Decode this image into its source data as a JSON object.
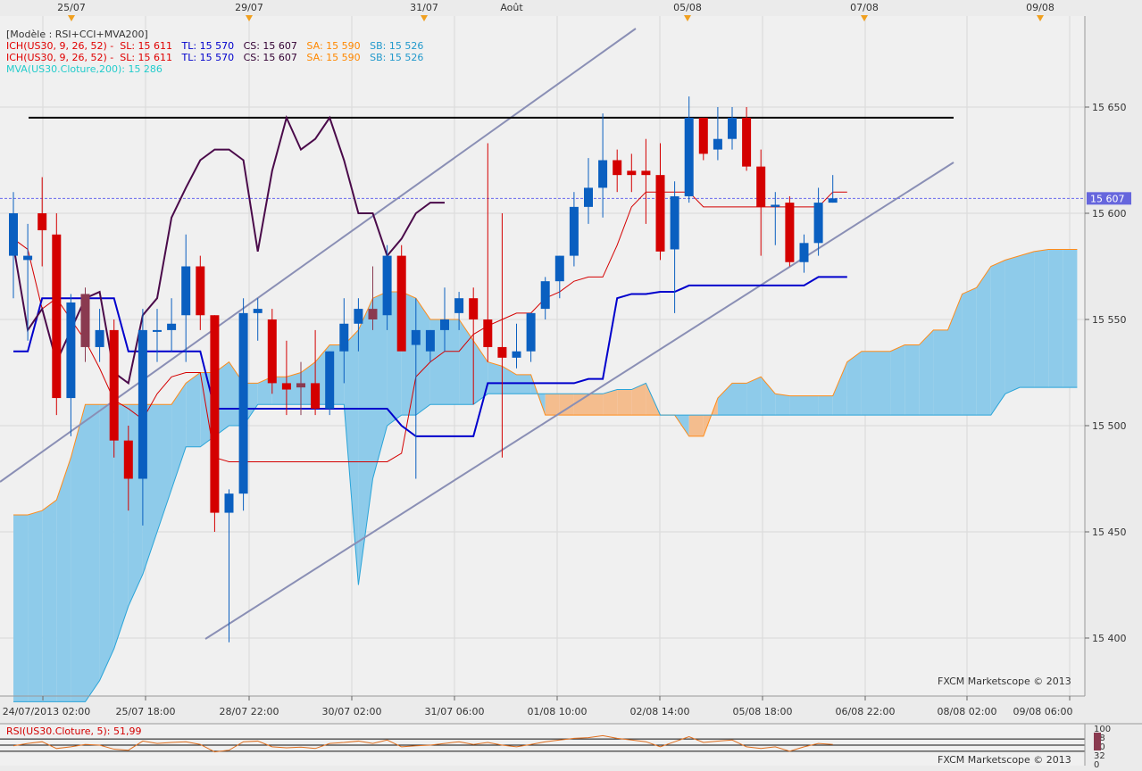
{
  "chart_data": {
    "type": "candlestick",
    "instrument": "US30",
    "ylim": [
      15370,
      15680
    ],
    "y_ticks": [
      15400,
      15450,
      15500,
      15550,
      15600,
      15650
    ],
    "y_tick_labels": [
      "15 400",
      "15 450",
      "15 500",
      "15 550",
      "15 600",
      "15 650"
    ],
    "current_price": 15607,
    "current_price_label": "15 607",
    "top_date_labels": [
      "25/07",
      "29/07",
      "31/07",
      "Août",
      "05/08",
      "07/08",
      "09/08"
    ],
    "bottom_date_labels": [
      "24/07/2013 02:00",
      "25/07 18:00",
      "28/07 22:00",
      "30/07 02:00",
      "31/07 06:00",
      "01/08 10:00",
      "02/08 14:00",
      "05/08 18:00",
      "06/08 22:00",
      "08/08 02:00",
      "09/08 06:00"
    ],
    "legend": {
      "line1": "[Modèle : RSI+CCI+MVA200]",
      "line2": [
        {
          "text": "ICH(US30, 9, 26, 52) -  SL: 15 611",
          "color": "#e00000"
        },
        {
          "text": "TL: 15 570",
          "color": "#0000cc"
        },
        {
          "text": "CS: 15 607",
          "color": "#330033"
        },
        {
          "text": "SA: 15 590",
          "color": "#ff8800"
        },
        {
          "text": "SB: 15 526",
          "color": "#2299cc"
        }
      ],
      "line3": [
        {
          "text": "ICH(US30, 9, 26, 52) -  SL: 15 611",
          "color": "#e00000"
        },
        {
          "text": "TL: 15 570",
          "color": "#0000cc"
        },
        {
          "text": "CS: 15 607",
          "color": "#330033"
        },
        {
          "text": "SA: 15 590",
          "color": "#ff8800"
        },
        {
          "text": "SB: 15 526",
          "color": "#2299cc"
        }
      ],
      "line4": "MVA(US30.Cloture,200): 15 286"
    },
    "candles": [
      {
        "o": 15580,
        "h": 15610,
        "l": 15560,
        "c": 15600
      },
      {
        "o": 15578,
        "h": 15595,
        "l": 15540,
        "c": 15580
      },
      {
        "o": 15600,
        "h": 15617,
        "l": 15575,
        "c": 15592
      },
      {
        "o": 15590,
        "h": 15600,
        "l": 15505,
        "c": 15513
      },
      {
        "o": 15513,
        "h": 15562,
        "l": 15495,
        "c": 15558
      },
      {
        "o": 15562,
        "h": 15565,
        "l": 15530,
        "c": 15537
      },
      {
        "o": 15537,
        "h": 15555,
        "l": 15530,
        "c": 15545
      },
      {
        "o": 15545,
        "h": 15550,
        "l": 15485,
        "c": 15493
      },
      {
        "o": 15493,
        "h": 15500,
        "l": 15460,
        "c": 15475
      },
      {
        "o": 15475,
        "h": 15555,
        "l": 15453,
        "c": 15545
      },
      {
        "o": 15545,
        "h": 15555,
        "l": 15530,
        "c": 15545
      },
      {
        "o": 15545,
        "h": 15560,
        "l": 15535,
        "c": 15548
      },
      {
        "o": 15552,
        "h": 15590,
        "l": 15530,
        "c": 15575
      },
      {
        "o": 15575,
        "h": 15580,
        "l": 15545,
        "c": 15552
      },
      {
        "o": 15552,
        "h": 15552,
        "l": 15450,
        "c": 15459
      },
      {
        "o": 15459,
        "h": 15470,
        "l": 15398,
        "c": 15468
      },
      {
        "o": 15468,
        "h": 15560,
        "l": 15460,
        "c": 15553
      },
      {
        "o": 15553,
        "h": 15560,
        "l": 15540,
        "c": 15555
      },
      {
        "o": 15550,
        "h": 15555,
        "l": 15515,
        "c": 15520
      },
      {
        "o": 15520,
        "h": 15540,
        "l": 15505,
        "c": 15517
      },
      {
        "o": 15520,
        "h": 15530,
        "l": 15505,
        "c": 15518
      },
      {
        "o": 15520,
        "h": 15545,
        "l": 15505,
        "c": 15508
      },
      {
        "o": 15508,
        "h": 15535,
        "l": 15505,
        "c": 15535
      },
      {
        "o": 15535,
        "h": 15560,
        "l": 15520,
        "c": 15548
      },
      {
        "o": 15548,
        "h": 15560,
        "l": 15535,
        "c": 15555
      },
      {
        "o": 15555,
        "h": 15575,
        "l": 15545,
        "c": 15550
      },
      {
        "o": 15552,
        "h": 15585,
        "l": 15545,
        "c": 15580
      },
      {
        "o": 15580,
        "h": 15585,
        "l": 15538,
        "c": 15535
      },
      {
        "o": 15538,
        "h": 15560,
        "l": 15475,
        "c": 15545
      },
      {
        "o": 15535,
        "h": 15545,
        "l": 15530,
        "c": 15545
      },
      {
        "o": 15545,
        "h": 15565,
        "l": 15535,
        "c": 15550
      },
      {
        "o": 15553,
        "h": 15563,
        "l": 15545,
        "c": 15560
      },
      {
        "o": 15560,
        "h": 15565,
        "l": 15510,
        "c": 15550
      },
      {
        "o": 15550,
        "h": 15633,
        "l": 15530,
        "c": 15537
      },
      {
        "o": 15537,
        "h": 15600,
        "l": 15485,
        "c": 15532
      },
      {
        "o": 15532,
        "h": 15548,
        "l": 15527,
        "c": 15535
      },
      {
        "o": 15535,
        "h": 15553,
        "l": 15530,
        "c": 15553
      },
      {
        "o": 15555,
        "h": 15570,
        "l": 15550,
        "c": 15568
      },
      {
        "o": 15568,
        "h": 15580,
        "l": 15560,
        "c": 15580
      },
      {
        "o": 15580,
        "h": 15610,
        "l": 15575,
        "c": 15603
      },
      {
        "o": 15603,
        "h": 15626,
        "l": 15595,
        "c": 15612
      },
      {
        "o": 15612,
        "h": 15647,
        "l": 15598,
        "c": 15625
      },
      {
        "o": 15625,
        "h": 15630,
        "l": 15610,
        "c": 15618
      },
      {
        "o": 15620,
        "h": 15628,
        "l": 15610,
        "c": 15618
      },
      {
        "o": 15620,
        "h": 15635,
        "l": 15595,
        "c": 15618
      },
      {
        "o": 15618,
        "h": 15633,
        "l": 15578,
        "c": 15582
      },
      {
        "o": 15583,
        "h": 15615,
        "l": 15553,
        "c": 15608
      },
      {
        "o": 15608,
        "h": 15655,
        "l": 15605,
        "c": 15645
      },
      {
        "o": 15645,
        "h": 15645,
        "l": 15625,
        "c": 15628
      },
      {
        "o": 15630,
        "h": 15650,
        "l": 15625,
        "c": 15635
      },
      {
        "o": 15635,
        "h": 15650,
        "l": 15630,
        "c": 15645
      },
      {
        "o": 15645,
        "h": 15650,
        "l": 15620,
        "c": 15622
      },
      {
        "o": 15622,
        "h": 15630,
        "l": 15580,
        "c": 15603
      },
      {
        "o": 15603,
        "h": 15610,
        "l": 15585,
        "c": 15604
      },
      {
        "o": 15605,
        "h": 15608,
        "l": 15575,
        "c": 15577
      },
      {
        "o": 15577,
        "h": 15590,
        "l": 15572,
        "c": 15586
      },
      {
        "o": 15586,
        "h": 15612,
        "l": 15580,
        "c": 15605
      },
      {
        "o": 15605,
        "h": 15618,
        "l": 15605,
        "c": 15607
      }
    ],
    "tenkan": [
      15535,
      15535,
      15560,
      15560,
      15560,
      15560,
      15560,
      15560,
      15535,
      15535,
      15535,
      15535,
      15535,
      15535,
      15508,
      15508,
      15508,
      15508,
      15508,
      15508,
      15508,
      15508,
      15508,
      15508,
      15508,
      15508,
      15508,
      15500,
      15495,
      15495,
      15495,
      15495,
      15495,
      15520,
      15520,
      15520,
      15520,
      15520,
      15520,
      15520,
      15522,
      15522,
      15560,
      15562,
      15562,
      15563,
      15563,
      15566,
      15566,
      15566,
      15566,
      15566,
      15566,
      15566,
      15566,
      15566,
      15570,
      15570,
      15570
    ],
    "kijun": [
      15588,
      15583,
      15555,
      15560,
      15550,
      15540,
      15527,
      15512,
      15508,
      15503,
      15515,
      15523,
      15525,
      15525,
      15485,
      15483,
      15483,
      15483,
      15483,
      15483,
      15483,
      15483,
      15483,
      15483,
      15483,
      15483,
      15483,
      15487,
      15523,
      15530,
      15535,
      15535,
      15543,
      15547,
      15550,
      15553,
      15553,
      15560,
      15563,
      15568,
      15570,
      15570,
      15585,
      15603,
      15610,
      15610,
      15610,
      15610,
      15603,
      15603,
      15603,
      15603,
      15603,
      15603,
      15603,
      15603,
      15603,
      15610,
      15610
    ],
    "chikou": [
      15585,
      15545,
      15555,
      15530,
      15545,
      15560,
      15563,
      15525,
      15520,
      15552,
      15560,
      15598,
      15612,
      15625,
      15630,
      15630,
      15625,
      15582,
      15620,
      15645,
      15630,
      15635,
      15645,
      15625,
      15600,
      15600,
      15580,
      15588,
      15600,
      15605,
      15605
    ],
    "senkou_a": [
      15458,
      15458,
      15460,
      15465,
      15485,
      15510,
      15510,
      15510,
      15510,
      15510,
      15510,
      15510,
      15520,
      15525,
      15525,
      15530,
      15520,
      15520,
      15523,
      15523,
      15525,
      15530,
      15538,
      15538,
      15545,
      15560,
      15563,
      15563,
      15560,
      15550,
      15550,
      15550,
      15540,
      15530,
      15528,
      15524,
      15524,
      15505,
      15505,
      15505,
      15505,
      15505,
      15505,
      15505,
      15505,
      15505,
      15505,
      15495,
      15495,
      15513,
      15520,
      15520,
      15523,
      15515,
      15514,
      15514,
      15514,
      15514,
      15530,
      15535,
      15535,
      15535,
      15538,
      15538,
      15545,
      15545,
      15562,
      15565,
      15575,
      15578,
      15580,
      15582,
      15583,
      15583,
      15583
    ],
    "senkou_b": [
      15370,
      15370,
      15370,
      15370,
      15370,
      15370,
      15380,
      15395,
      15415,
      15430,
      15450,
      15470,
      15490,
      15490,
      15495,
      15500,
      15500,
      15510,
      15510,
      15510,
      15510,
      15510,
      15510,
      15510,
      15425,
      15475,
      15500,
      15505,
      15505,
      15510,
      15510,
      15510,
      15510,
      15515,
      15515,
      15515,
      15515,
      15515,
      15515,
      15515,
      15515,
      15515,
      15517,
      15517,
      15520,
      15505,
      15505,
      15505,
      15505,
      15505,
      15505,
      15505,
      15505,
      15505,
      15505,
      15505,
      15505,
      15505,
      15505,
      15505,
      15505,
      15505,
      15505,
      15505,
      15505,
      15505,
      15505,
      15505,
      15505,
      15515,
      15518,
      15518,
      15518,
      15518,
      15518
    ],
    "resistance": 15645,
    "rsi": {
      "label": "RSI(US30.Cloture, 5): 51,99",
      "ylim": [
        0,
        100
      ],
      "tick_labels": [
        "100",
        "68",
        "50",
        "32",
        "0"
      ],
      "values": [
        48,
        55,
        60,
        40,
        45,
        52,
        50,
        38,
        35,
        62,
        55,
        58,
        60,
        52,
        30,
        35,
        60,
        62,
        45,
        42,
        44,
        40,
        55,
        58,
        62,
        55,
        65,
        45,
        48,
        50,
        55,
        60,
        52,
        58,
        50,
        45,
        52,
        60,
        65,
        70,
        72,
        78,
        70,
        65,
        60,
        45,
        60,
        75,
        58,
        62,
        65,
        45,
        40,
        45,
        32,
        45,
        55,
        52
      ]
    },
    "watermark": "FXCM Marketscope © 2013"
  }
}
